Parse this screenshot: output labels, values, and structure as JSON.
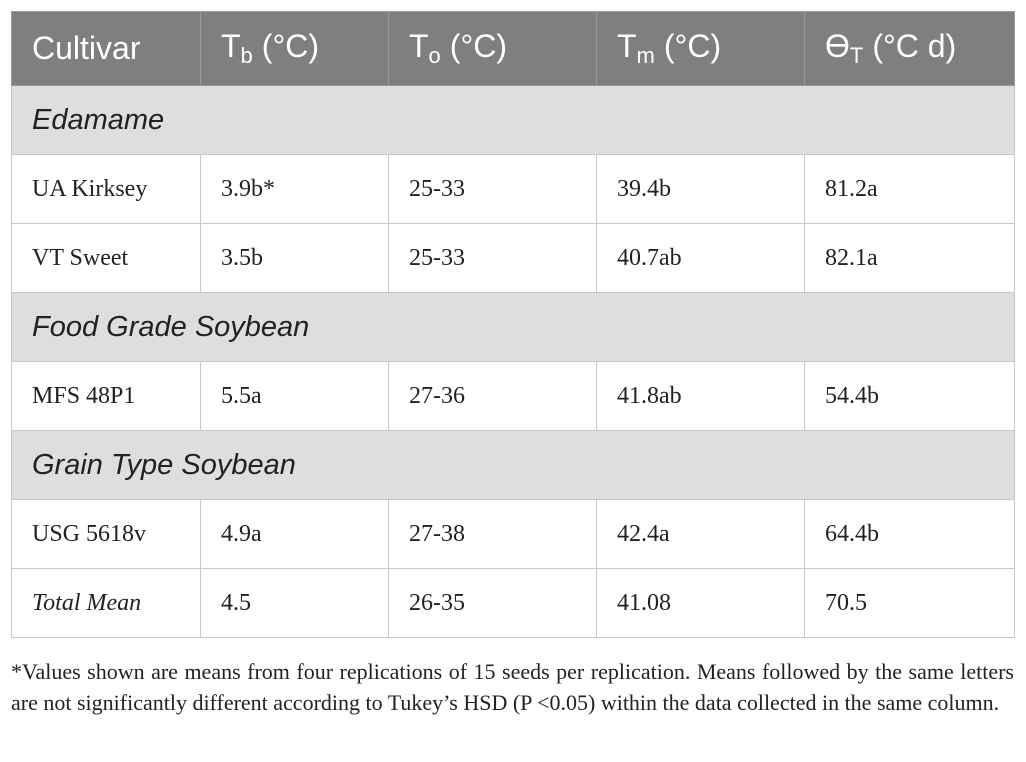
{
  "table": {
    "header": [
      {
        "main": "Cultivar"
      },
      {
        "main": "T",
        "sub": "b",
        "unit": "(°C)"
      },
      {
        "main": "T",
        "sub": "o",
        "unit": "(°C)"
      },
      {
        "main": "T",
        "sub": "m",
        "unit": "(°C)"
      },
      {
        "main": "ϴ",
        "sub": "T",
        "unit": "(°C d)"
      }
    ],
    "sections": [
      {
        "title": "Edamame",
        "rows": [
          [
            "UA Kirksey",
            "3.9b*",
            "25-33",
            "39.4b",
            "81.2a"
          ],
          [
            "VT Sweet",
            "3.5b",
            "25-33",
            "40.7ab",
            "82.1a"
          ]
        ]
      },
      {
        "title": "Food Grade Soybean",
        "rows": [
          [
            "MFS 48P1",
            "5.5a",
            "27-36",
            "41.8ab",
            "54.4b"
          ]
        ]
      },
      {
        "title": "Grain Type Soybean",
        "rows": [
          [
            "USG 5618v",
            "4.9a",
            "27-38",
            "42.4a",
            "64.4b"
          ]
        ]
      }
    ],
    "total": [
      "Total Mean",
      "4.5",
      "26-35",
      "41.08",
      "70.5"
    ]
  },
  "footnote": "*Values shown are means from four replications of 15 seeds per replication. Means followed by the same letters are not significantly different according to Tukey’s HSD (P <0.05) within the data collected in the same column."
}
